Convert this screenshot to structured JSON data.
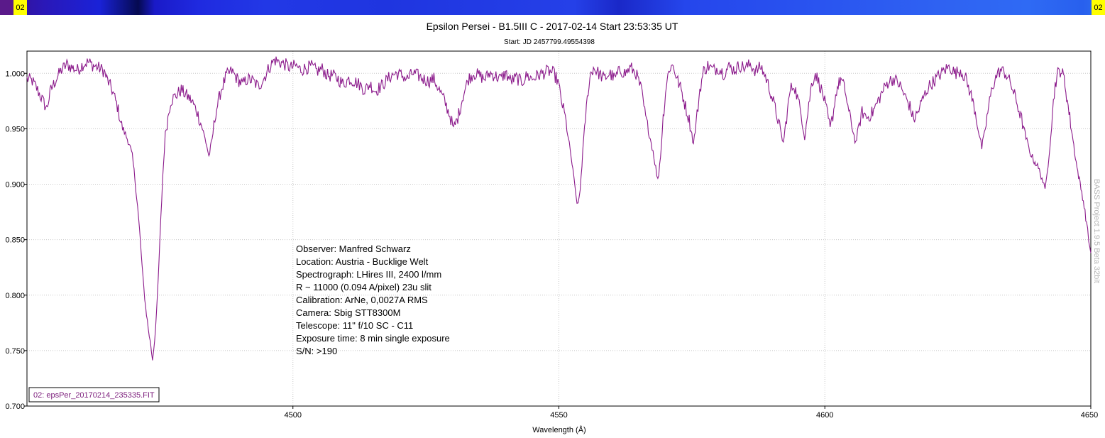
{
  "header": {
    "strip_left_label": "02",
    "strip_right_label": "02"
  },
  "chart_data": {
    "type": "line",
    "title": "Epsilon Persei - B1.5III C - 2017-02-14 Start 23:53:35 UT",
    "subtitle": "Start: JD 2457799.49554398",
    "xlabel": "Wavelength (Å)",
    "ylabel": "",
    "xlim": [
      4450,
      4650
    ],
    "ylim": [
      0.7,
      1.02
    ],
    "x_ticks": [
      4500,
      4550,
      4600,
      4650
    ],
    "y_ticks": [
      0.7,
      0.75,
      0.8,
      0.85,
      0.9,
      0.95,
      1.0
    ],
    "y_tick_labels": [
      "0.700",
      "0.750",
      "0.800",
      "0.850",
      "0.900",
      "0.950",
      "1.000"
    ],
    "grid": true,
    "legend": "bottom-left",
    "series": [
      {
        "name": "02: epsPer_20170214_235335.FIT",
        "color": "#8b1a8b",
        "points": [
          [
            4450.0,
            0.995
          ],
          [
            4451.0,
            0.993
          ],
          [
            4452.0,
            0.985
          ],
          [
            4453.0,
            0.975
          ],
          [
            4453.7,
            0.968
          ],
          [
            4454.5,
            0.985
          ],
          [
            4455.5,
            0.995
          ],
          [
            4456.5,
            1.003
          ],
          [
            4457.5,
            1.008
          ],
          [
            4458.5,
            1.005
          ],
          [
            4459.5,
            1.003
          ],
          [
            4460.5,
            1.008
          ],
          [
            4461.5,
            1.01
          ],
          [
            4462.5,
            1.007
          ],
          [
            4463.5,
            1.005
          ],
          [
            4464.5,
            1.002
          ],
          [
            4465.0,
            0.995
          ],
          [
            4466.0,
            0.985
          ],
          [
            4467.0,
            0.97
          ],
          [
            4467.8,
            0.953
          ],
          [
            4468.5,
            0.945
          ],
          [
            4469.2,
            0.937
          ],
          [
            4469.8,
            0.925
          ],
          [
            4470.3,
            0.905
          ],
          [
            4470.8,
            0.88
          ],
          [
            4471.3,
            0.85
          ],
          [
            4471.8,
            0.815
          ],
          [
            4472.3,
            0.79
          ],
          [
            4472.8,
            0.77
          ],
          [
            4473.2,
            0.757
          ],
          [
            4473.6,
            0.742
          ],
          [
            4474.0,
            0.76
          ],
          [
            4474.5,
            0.795
          ],
          [
            4475.0,
            0.85
          ],
          [
            4475.5,
            0.905
          ],
          [
            4476.0,
            0.945
          ],
          [
            4476.5,
            0.96
          ],
          [
            4477.0,
            0.975
          ],
          [
            4478.0,
            0.98
          ],
          [
            4479.0,
            0.985
          ],
          [
            4480.0,
            0.98
          ],
          [
            4481.0,
            0.975
          ],
          [
            4482.0,
            0.965
          ],
          [
            4483.0,
            0.95
          ],
          [
            4483.8,
            0.935
          ],
          [
            4484.2,
            0.925
          ],
          [
            4484.8,
            0.94
          ],
          [
            4485.5,
            0.965
          ],
          [
            4486.5,
            0.985
          ],
          [
            4487.5,
            0.998
          ],
          [
            4488.5,
            1.002
          ],
          [
            4489.5,
            0.995
          ],
          [
            4490.5,
            0.99
          ],
          [
            4491.5,
            0.995
          ],
          [
            4492.5,
            0.993
          ],
          [
            4493.5,
            0.988
          ],
          [
            4494.5,
            0.995
          ],
          [
            4495.5,
            1.005
          ],
          [
            4496.5,
            1.012
          ],
          [
            4497.5,
            1.01
          ],
          [
            4498.5,
            1.008
          ],
          [
            4499.5,
            1.005
          ],
          [
            4500.5,
            1.007
          ],
          [
            4501.5,
            1.003
          ],
          [
            4502.5,
            1.005
          ],
          [
            4503.5,
            1.006
          ],
          [
            4504.5,
            1.002
          ],
          [
            4505.5,
            1.004
          ],
          [
            4506.5,
            0.998
          ],
          [
            4507.5,
            0.998
          ],
          [
            4508.5,
            0.995
          ],
          [
            4509.5,
            0.99
          ],
          [
            4510.5,
            0.995
          ],
          [
            4511.5,
            0.993
          ],
          [
            4512.5,
            0.99
          ],
          [
            4513.5,
            0.985
          ],
          [
            4514.5,
            0.99
          ],
          [
            4515.5,
            0.984
          ],
          [
            4516.5,
            0.988
          ],
          [
            4517.5,
            0.993
          ],
          [
            4518.5,
            0.998
          ],
          [
            4519.5,
            1.0
          ],
          [
            4520.5,
            0.998
          ],
          [
            4521.5,
            0.995
          ],
          [
            4522.5,
            1.0
          ],
          [
            4523.5,
            0.998
          ],
          [
            4524.5,
            0.995
          ],
          [
            4525.5,
            0.993
          ],
          [
            4526.5,
            0.995
          ],
          [
            4527.5,
            0.985
          ],
          [
            4528.5,
            0.975
          ],
          [
            4529.5,
            0.962
          ],
          [
            4530.2,
            0.95
          ],
          [
            4531.0,
            0.96
          ],
          [
            4532.0,
            0.98
          ],
          [
            4533.0,
            0.995
          ],
          [
            4534.0,
            1.0
          ],
          [
            4535.0,
            0.998
          ],
          [
            4536.0,
            0.995
          ],
          [
            4537.0,
            1.0
          ],
          [
            4538.0,
            0.998
          ],
          [
            4539.0,
            0.995
          ],
          [
            4540.0,
            1.0
          ],
          [
            4541.0,
            0.993
          ],
          [
            4542.0,
            0.996
          ],
          [
            4543.0,
            0.992
          ],
          [
            4544.0,
            0.998
          ],
          [
            4545.0,
            0.995
          ],
          [
            4546.0,
            0.998
          ],
          [
            4547.0,
            1.0
          ],
          [
            4548.0,
            1.002
          ],
          [
            4549.0,
            1.0
          ],
          [
            4549.8,
            0.993
          ],
          [
            4550.5,
            0.975
          ],
          [
            4551.2,
            0.96
          ],
          [
            4551.8,
            0.94
          ],
          [
            4552.3,
            0.925
          ],
          [
            4552.8,
            0.905
          ],
          [
            4553.2,
            0.89
          ],
          [
            4553.6,
            0.88
          ],
          [
            4554.0,
            0.895
          ],
          [
            4554.5,
            0.93
          ],
          [
            4555.0,
            0.96
          ],
          [
            4555.5,
            0.985
          ],
          [
            4556.0,
            1.0
          ],
          [
            4556.5,
            1.005
          ],
          [
            4557.5,
            1.0
          ],
          [
            4558.5,
            0.995
          ],
          [
            4559.5,
            1.0
          ],
          [
            4560.5,
            0.995
          ],
          [
            4561.5,
            1.003
          ],
          [
            4562.5,
            1.0
          ],
          [
            4563.5,
            1.005
          ],
          [
            4564.5,
            1.0
          ],
          [
            4565.5,
            0.985
          ],
          [
            4566.3,
            0.96
          ],
          [
            4567.0,
            0.945
          ],
          [
            4567.7,
            0.93
          ],
          [
            4568.2,
            0.915
          ],
          [
            4568.6,
            0.903
          ],
          [
            4569.1,
            0.925
          ],
          [
            4569.6,
            0.96
          ],
          [
            4570.2,
            0.99
          ],
          [
            4570.8,
            1.005
          ],
          [
            4571.5,
            1.007
          ],
          [
            4572.2,
            0.995
          ],
          [
            4573.0,
            0.985
          ],
          [
            4573.8,
            0.97
          ],
          [
            4574.5,
            0.958
          ],
          [
            4575.0,
            0.945
          ],
          [
            4575.3,
            0.936
          ],
          [
            4575.8,
            0.955
          ],
          [
            4576.5,
            0.985
          ],
          [
            4577.2,
            1.002
          ],
          [
            4578.0,
            1.007
          ],
          [
            4579.0,
            1.003
          ],
          [
            4580.0,
            1.005
          ],
          [
            4581.0,
            1.0
          ],
          [
            4582.0,
            1.006
          ],
          [
            4583.0,
            1.003
          ],
          [
            4584.0,
            1.007
          ],
          [
            4585.0,
            1.005
          ],
          [
            4586.0,
            1.008
          ],
          [
            4587.0,
            1.002
          ],
          [
            4588.0,
            1.006
          ],
          [
            4589.0,
            0.995
          ],
          [
            4590.0,
            0.98
          ],
          [
            4591.0,
            0.962
          ],
          [
            4591.8,
            0.945
          ],
          [
            4592.2,
            0.937
          ],
          [
            4592.8,
            0.96
          ],
          [
            4593.5,
            0.985
          ],
          [
            4594.2,
            0.99
          ],
          [
            4595.0,
            0.975
          ],
          [
            4595.7,
            0.96
          ],
          [
            4596.2,
            0.942
          ],
          [
            4596.8,
            0.965
          ],
          [
            4597.5,
            0.99
          ],
          [
            4598.2,
            1.0
          ],
          [
            4599.0,
            0.99
          ],
          [
            4599.8,
            0.978
          ],
          [
            4600.5,
            0.962
          ],
          [
            4601.0,
            0.95
          ],
          [
            4601.5,
            0.962
          ],
          [
            4602.2,
            0.985
          ],
          [
            4603.0,
            0.995
          ],
          [
            4603.8,
            0.985
          ],
          [
            4604.5,
            0.965
          ],
          [
            4605.2,
            0.95
          ],
          [
            4605.8,
            0.937
          ],
          [
            4606.3,
            0.95
          ],
          [
            4607.0,
            0.965
          ],
          [
            4608.0,
            0.96
          ],
          [
            4609.0,
            0.965
          ],
          [
            4610.0,
            0.975
          ],
          [
            4611.0,
            0.985
          ],
          [
            4612.0,
            0.993
          ],
          [
            4613.0,
            0.995
          ],
          [
            4614.0,
            0.99
          ],
          [
            4615.0,
            0.98
          ],
          [
            4616.0,
            0.97
          ],
          [
            4616.7,
            0.958
          ],
          [
            4617.5,
            0.965
          ],
          [
            4618.5,
            0.978
          ],
          [
            4619.5,
            0.988
          ],
          [
            4620.5,
            0.993
          ],
          [
            4621.5,
            0.998
          ],
          [
            4622.5,
            1.003
          ],
          [
            4623.5,
            1.006
          ],
          [
            4624.5,
            1.0
          ],
          [
            4625.5,
            1.003
          ],
          [
            4626.5,
            0.995
          ],
          [
            4627.5,
            0.98
          ],
          [
            4628.3,
            0.965
          ],
          [
            4629.0,
            0.945
          ],
          [
            4629.5,
            0.933
          ],
          [
            4630.0,
            0.945
          ],
          [
            4630.8,
            0.97
          ],
          [
            4631.5,
            0.988
          ],
          [
            4632.3,
            0.998
          ],
          [
            4633.0,
            1.003
          ],
          [
            4634.0,
            1.0
          ],
          [
            4635.0,
            0.99
          ],
          [
            4636.0,
            0.975
          ],
          [
            4637.0,
            0.958
          ],
          [
            4637.8,
            0.942
          ],
          [
            4638.5,
            0.93
          ],
          [
            4639.2,
            0.922
          ],
          [
            4639.8,
            0.918
          ],
          [
            4640.5,
            0.91
          ],
          [
            4641.0,
            0.903
          ],
          [
            4641.4,
            0.893
          ],
          [
            4641.8,
            0.91
          ],
          [
            4642.3,
            0.935
          ],
          [
            4642.8,
            0.965
          ],
          [
            4643.3,
            0.99
          ],
          [
            4643.8,
            1.0
          ],
          [
            4644.4,
            1.003
          ],
          [
            4645.0,
            0.995
          ],
          [
            4645.6,
            0.975
          ],
          [
            4646.2,
            0.955
          ],
          [
            4646.8,
            0.935
          ],
          [
            4647.4,
            0.915
          ],
          [
            4648.0,
            0.9
          ],
          [
            4648.6,
            0.885
          ],
          [
            4649.2,
            0.865
          ],
          [
            4649.6,
            0.85
          ],
          [
            4650.0,
            0.838
          ]
        ]
      }
    ],
    "annotations": [
      "Observer: Manfred Schwarz",
      "Location: Austria - Bucklige Welt",
      "Spectrograph: LHires III, 2400 l/mm",
      "R ~ 11000 (0.094 A/pixel) 23u slit",
      "Calibration: ArNe, 0,0027A RMS",
      "Camera: Sbig STT8300M",
      "Telescope: 11\" f/10 SC - C11",
      "Exposure time: 8 min single exposure",
      "S/N:  >190"
    ],
    "watermark": "BASS Project 1.9.5 Beta 32bit"
  }
}
